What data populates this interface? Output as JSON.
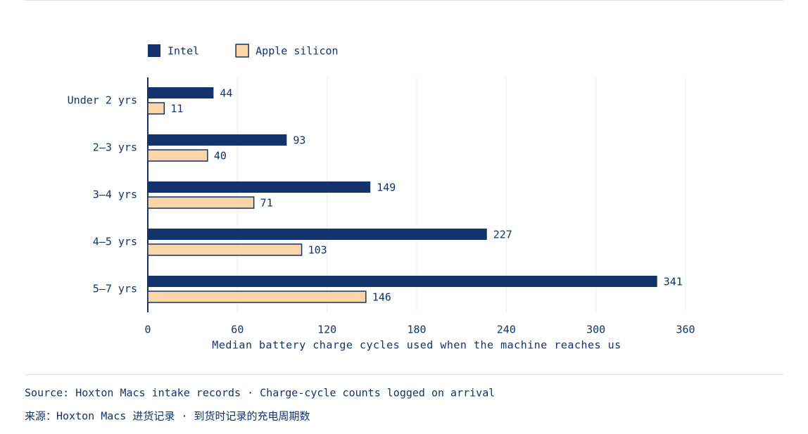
{
  "chart_data": {
    "type": "barh",
    "categories": [
      "Under 2 yrs",
      "2–3 yrs",
      "3–4 yrs",
      "4–5 yrs",
      "5–7 yrs"
    ],
    "series": [
      {
        "name": "Intel",
        "color": "#12336b",
        "values": [
          44,
          93,
          149,
          227,
          341
        ]
      },
      {
        "name": "Apple silicon",
        "color": "#fbd5a8",
        "values": [
          11,
          40,
          71,
          103,
          146
        ]
      }
    ],
    "xlabel": "Median battery charge cycles used when the machine reaches us",
    "xlim": [
      0,
      360
    ],
    "xticks": [
      0,
      60,
      120,
      180,
      240,
      300,
      360
    ],
    "grid": true,
    "footnotes": [
      "Source: Hoxton Macs intake records · Charge-cycle counts logged on arrival",
      "来源：Hoxton Macs 进货记录 · 到货时记录的充电周期数"
    ]
  }
}
